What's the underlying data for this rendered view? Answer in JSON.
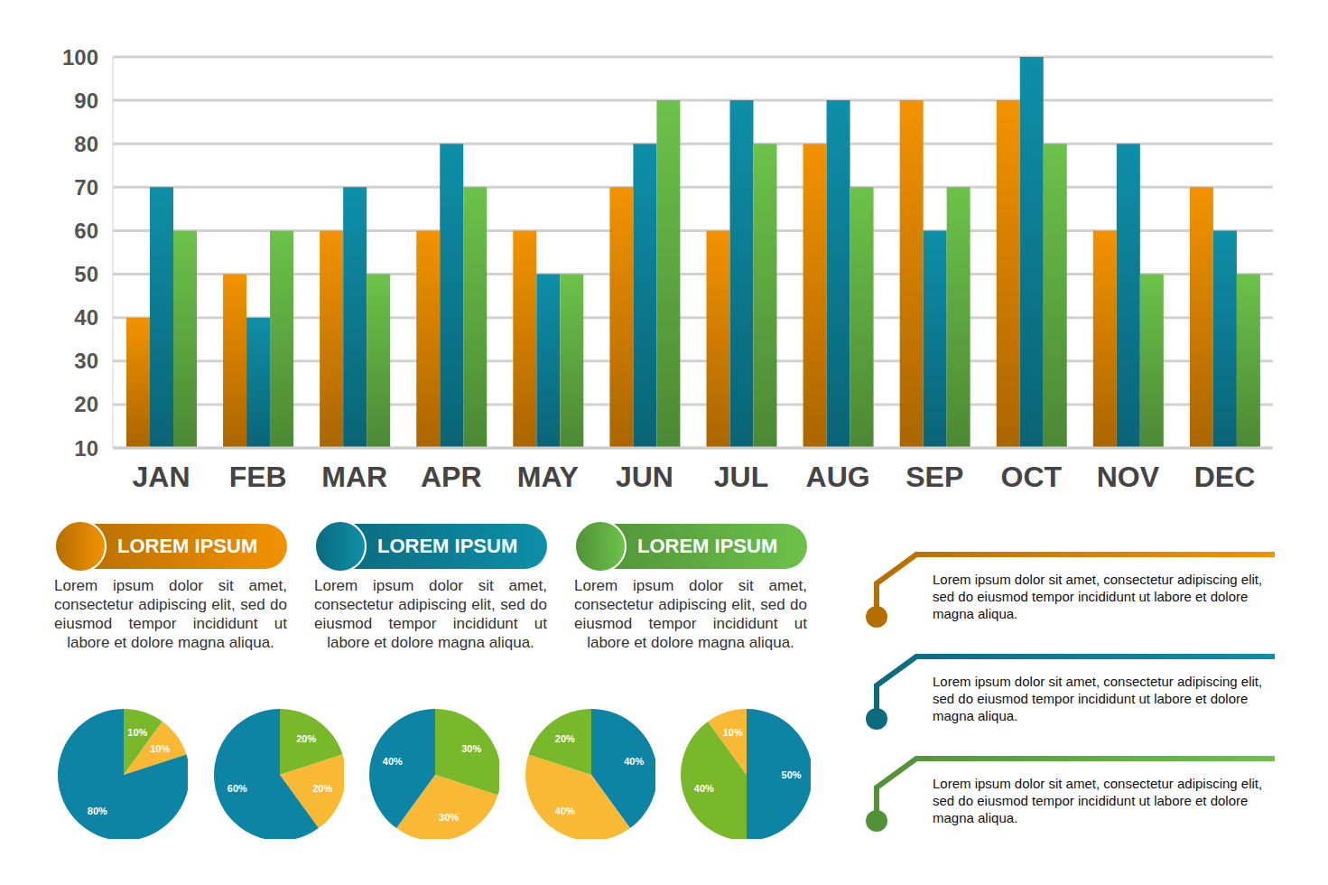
{
  "chart_data": [
    {
      "type": "bar",
      "categories": [
        "JAN",
        "FEB",
        "MAR",
        "APR",
        "MAY",
        "JUN",
        "JUL",
        "AUG",
        "SEP",
        "OCT",
        "NOV",
        "DEC"
      ],
      "series": [
        {
          "name": "LOREM IPSUM",
          "color": "#f39200",
          "values": [
            40,
            50,
            60,
            60,
            60,
            70,
            60,
            80,
            90,
            90,
            60,
            70
          ]
        },
        {
          "name": "LOREM IPSUM",
          "color": "#0e8fa8",
          "values": [
            70,
            40,
            70,
            80,
            50,
            80,
            90,
            90,
            60,
            100,
            80,
            60
          ]
        },
        {
          "name": "LOREM IPSUM",
          "color": "#6cc24a",
          "values": [
            60,
            60,
            50,
            70,
            50,
            90,
            80,
            70,
            70,
            80,
            50,
            50
          ]
        }
      ],
      "ylim": [
        10,
        100
      ],
      "yticks": [
        10,
        20,
        30,
        40,
        50,
        60,
        70,
        80,
        90,
        100
      ],
      "grid": true
    },
    {
      "type": "pie",
      "values": [
        10,
        10,
        80
      ],
      "value_labels": [
        "10%",
        "10%",
        "80%"
      ],
      "colors": [
        "#78b82a",
        "#f9b935",
        "#0e84a5"
      ],
      "data_labels": true
    },
    {
      "type": "pie",
      "values": [
        20,
        20,
        60
      ],
      "value_labels": [
        "20%",
        "20%",
        "60%"
      ],
      "colors": [
        "#78b82a",
        "#f9b935",
        "#0e84a5"
      ],
      "data_labels": true
    },
    {
      "type": "pie",
      "values": [
        30,
        30,
        40
      ],
      "value_labels": [
        "30%",
        "30%",
        "40%"
      ],
      "colors": [
        "#78b82a",
        "#f9b935",
        "#0e84a5"
      ],
      "data_labels": true
    },
    {
      "type": "pie",
      "values": [
        40,
        40,
        20
      ],
      "value_labels": [
        "40%",
        "40%",
        "20%"
      ],
      "colors": [
        "#0e84a5",
        "#f9b935",
        "#78b82a"
      ],
      "data_labels": true
    },
    {
      "type": "pie",
      "values": [
        50,
        40,
        10
      ],
      "value_labels": [
        "50%",
        "40%",
        "10%"
      ],
      "colors": [
        "#0e84a5",
        "#78b82a",
        "#f9b935"
      ],
      "data_labels": true
    }
  ],
  "panels": [
    {
      "text": "Lorem ipsum dolor sit amet, consectetur adipiscing elit, sed do eiusmod tempor incididunt ut labore et dolore magna aliqua."
    },
    {
      "text": "Lorem ipsum dolor sit amet, consectetur adipiscing elit, sed do eiusmod tempor incididunt ut labore et dolore magna aliqua."
    },
    {
      "text": "Lorem ipsum dolor sit amet, consectetur adipiscing elit, sed do eiusmod tempor incididunt ut labore et dolore magna aliqua."
    }
  ],
  "notes": [
    {
      "text": "Lorem ipsum dolor sit amet, consectetur adipiscing elit,  sed do eiusmod tempor incididunt ut labore et dolore magna aliqua."
    },
    {
      "text": "Lorem ipsum dolor sit amet, consectetur adipiscing elit,  sed do eiusmod tempor incididunt ut labore et dolore magna aliqua."
    },
    {
      "text": "Lorem ipsum dolor sit amet, consectetur adipiscing elit,  sed do eiusmod tempor incididunt ut labore et dolore magna aliqua."
    }
  ]
}
